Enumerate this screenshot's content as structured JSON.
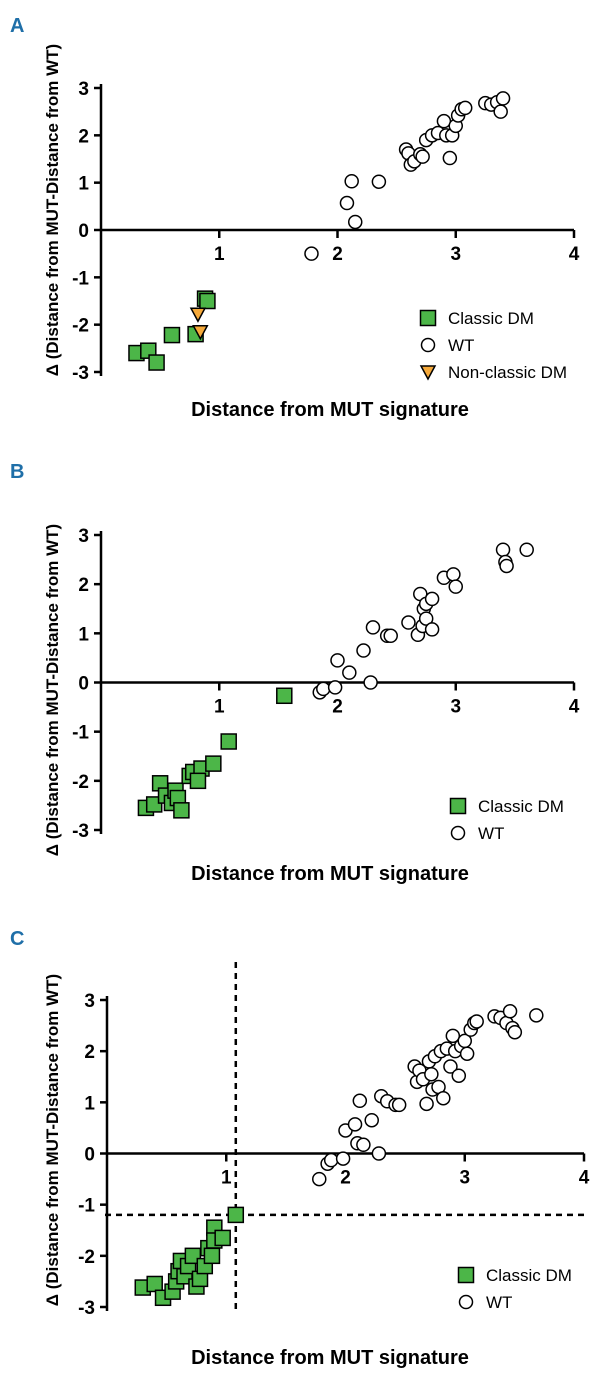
{
  "chart_data": [
    {
      "type": "scatter",
      "panel": "A",
      "xlabel": "Distance from MUT signature",
      "ylabel": "Δ (Distance from MUT-Distance from WT)",
      "xlim": [
        0,
        4
      ],
      "ylim": [
        -3,
        3
      ],
      "xticks": [
        "1",
        "2",
        "3",
        "4"
      ],
      "yticks": [
        "3",
        "2",
        "1",
        "0",
        "-1",
        "-2",
        "-3"
      ],
      "legend_position": "bottom-right",
      "series": [
        {
          "name": "Classic DM",
          "marker": "square",
          "color": "#4cb648",
          "points": [
            [
              0.3,
              -2.6
            ],
            [
              0.4,
              -2.55
            ],
            [
              0.47,
              -2.8
            ],
            [
              0.6,
              -2.22
            ],
            [
              0.8,
              -2.2
            ],
            [
              0.88,
              -1.45
            ],
            [
              0.9,
              -1.5
            ]
          ]
        },
        {
          "name": "WT",
          "marker": "circle",
          "color": "#ffffff",
          "points": [
            [
              1.78,
              -0.5
            ],
            [
              2.08,
              0.57
            ],
            [
              2.12,
              1.03
            ],
            [
              2.15,
              0.17
            ],
            [
              2.35,
              1.02
            ],
            [
              2.58,
              1.7
            ],
            [
              2.6,
              1.62
            ],
            [
              2.62,
              1.38
            ],
            [
              2.65,
              1.45
            ],
            [
              2.7,
              1.6
            ],
            [
              2.72,
              1.55
            ],
            [
              2.75,
              1.9
            ],
            [
              2.8,
              2.0
            ],
            [
              2.85,
              2.05
            ],
            [
              2.9,
              2.3
            ],
            [
              2.92,
              2.0
            ],
            [
              2.95,
              1.52
            ],
            [
              2.97,
              2.0
            ],
            [
              3.0,
              2.2
            ],
            [
              3.02,
              2.42
            ],
            [
              3.05,
              2.55
            ],
            [
              3.08,
              2.58
            ],
            [
              3.25,
              2.68
            ],
            [
              3.3,
              2.65
            ],
            [
              3.35,
              2.7
            ],
            [
              3.38,
              2.5
            ],
            [
              3.4,
              2.78
            ]
          ]
        },
        {
          "name": "Non-classic DM",
          "marker": "triangle-down",
          "color": "#f5a93a",
          "points": [
            [
              0.82,
              -1.78
            ],
            [
              0.84,
              -2.15
            ]
          ]
        }
      ]
    },
    {
      "type": "scatter",
      "panel": "B",
      "xlabel": "Distance from MUT signature",
      "ylabel": "Δ (Distance from MUT-Distance from WT)",
      "xlim": [
        0,
        4
      ],
      "ylim": [
        -3,
        3
      ],
      "xticks": [
        "1",
        "2",
        "3",
        "4"
      ],
      "yticks": [
        "3",
        "2",
        "1",
        "0",
        "-1",
        "-2",
        "-3"
      ],
      "legend_position": "bottom-right",
      "series": [
        {
          "name": "Classic DM",
          "marker": "square",
          "color": "#4cb648",
          "points": [
            [
              0.38,
              -2.55
            ],
            [
              0.45,
              -2.48
            ],
            [
              0.5,
              -2.05
            ],
            [
              0.55,
              -2.3
            ],
            [
              0.6,
              -2.45
            ],
            [
              0.63,
              -2.2
            ],
            [
              0.65,
              -2.35
            ],
            [
              0.68,
              -2.6
            ],
            [
              0.75,
              -1.9
            ],
            [
              0.78,
              -1.82
            ],
            [
              0.85,
              -1.75
            ],
            [
              0.82,
              -2.0
            ],
            [
              0.95,
              -1.65
            ],
            [
              1.08,
              -1.2
            ],
            [
              1.55,
              -0.27
            ]
          ]
        },
        {
          "name": "WT",
          "marker": "circle",
          "color": "#ffffff",
          "points": [
            [
              1.85,
              -0.2
            ],
            [
              1.88,
              -0.13
            ],
            [
              1.98,
              -0.1
            ],
            [
              2.0,
              0.45
            ],
            [
              2.1,
              0.2
            ],
            [
              2.22,
              0.65
            ],
            [
              2.28,
              0.0
            ],
            [
              2.3,
              1.12
            ],
            [
              2.42,
              0.95
            ],
            [
              2.45,
              0.95
            ],
            [
              2.6,
              1.22
            ],
            [
              2.68,
              0.97
            ],
            [
              2.7,
              1.8
            ],
            [
              2.72,
              1.15
            ],
            [
              2.73,
              1.5
            ],
            [
              2.75,
              1.3
            ],
            [
              2.75,
              1.6
            ],
            [
              2.8,
              1.7
            ],
            [
              2.8,
              1.08
            ],
            [
              2.9,
              2.13
            ],
            [
              2.98,
              2.2
            ],
            [
              3.0,
              1.95
            ],
            [
              3.4,
              2.7
            ],
            [
              3.42,
              2.45
            ],
            [
              3.43,
              2.37
            ],
            [
              3.6,
              2.7
            ]
          ]
        }
      ]
    },
    {
      "type": "scatter",
      "panel": "C",
      "xlabel": "Distance from MUT signature",
      "ylabel": "Δ (Distance from MUT-Distance from WT)",
      "xlim": [
        0,
        4
      ],
      "ylim": [
        -3,
        3
      ],
      "xticks": [
        "1",
        "2",
        "3",
        "4"
      ],
      "yticks": [
        "3",
        "2",
        "1",
        "0",
        "-1",
        "-2",
        "-3"
      ],
      "legend_position": "bottom-right",
      "threshold_lines": {
        "x": 1.08,
        "y": -1.2
      },
      "series": [
        {
          "name": "Classic DM",
          "marker": "square",
          "color": "#4cb648",
          "points": [
            [
              0.3,
              -2.62
            ],
            [
              0.4,
              -2.55
            ],
            [
              0.47,
              -2.82
            ],
            [
              0.55,
              -2.7
            ],
            [
              0.58,
              -2.5
            ],
            [
              0.6,
              -2.3
            ],
            [
              0.62,
              -2.1
            ],
            [
              0.65,
              -2.4
            ],
            [
              0.68,
              -2.2
            ],
            [
              0.72,
              -2.0
            ],
            [
              0.75,
              -2.6
            ],
            [
              0.78,
              -2.45
            ],
            [
              0.82,
              -2.2
            ],
            [
              0.85,
              -1.85
            ],
            [
              0.88,
              -2.0
            ],
            [
              0.9,
              -1.45
            ],
            [
              0.9,
              -1.7
            ],
            [
              0.97,
              -1.65
            ],
            [
              1.08,
              -1.2
            ]
          ]
        },
        {
          "name": "WT",
          "marker": "circle",
          "color": "#ffffff",
          "points": [
            [
              1.78,
              -0.5
            ],
            [
              1.85,
              -0.2
            ],
            [
              1.88,
              -0.13
            ],
            [
              1.98,
              -0.1
            ],
            [
              2.0,
              0.45
            ],
            [
              2.08,
              0.57
            ],
            [
              2.1,
              0.2
            ],
            [
              2.12,
              1.03
            ],
            [
              2.15,
              0.17
            ],
            [
              2.22,
              0.65
            ],
            [
              2.28,
              0.0
            ],
            [
              2.3,
              1.12
            ],
            [
              2.35,
              1.02
            ],
            [
              2.42,
              0.95
            ],
            [
              2.45,
              0.95
            ],
            [
              2.58,
              1.7
            ],
            [
              2.6,
              1.4
            ],
            [
              2.62,
              1.62
            ],
            [
              2.65,
              1.45
            ],
            [
              2.68,
              0.97
            ],
            [
              2.7,
              1.8
            ],
            [
              2.72,
              1.55
            ],
            [
              2.73,
              1.25
            ],
            [
              2.75,
              1.9
            ],
            [
              2.78,
              1.3
            ],
            [
              2.8,
              2.0
            ],
            [
              2.82,
              1.08
            ],
            [
              2.85,
              2.05
            ],
            [
              2.88,
              1.7
            ],
            [
              2.9,
              2.3
            ],
            [
              2.92,
              2.0
            ],
            [
              2.95,
              1.52
            ],
            [
              2.97,
              2.1
            ],
            [
              3.0,
              2.2
            ],
            [
              3.02,
              1.95
            ],
            [
              3.05,
              2.42
            ],
            [
              3.08,
              2.55
            ],
            [
              3.1,
              2.58
            ],
            [
              3.25,
              2.68
            ],
            [
              3.3,
              2.65
            ],
            [
              3.35,
              2.55
            ],
            [
              3.38,
              2.78
            ],
            [
              3.4,
              2.45
            ],
            [
              3.42,
              2.37
            ],
            [
              3.6,
              2.7
            ]
          ]
        }
      ]
    }
  ]
}
